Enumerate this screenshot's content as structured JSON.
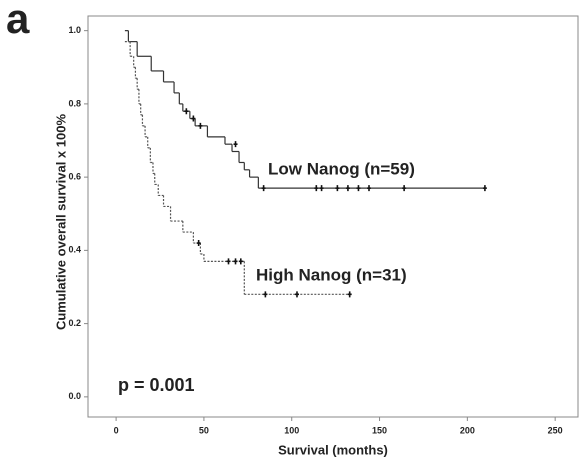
{
  "chart_data": {
    "type": "survival",
    "panel_label": "a",
    "x_label": "Survival (months)",
    "y_label": "Cumulative overall survival x 100%",
    "annotation": "p = 0.001",
    "xlim": [
      -16,
      263
    ],
    "xticks": [
      0,
      50,
      100,
      150,
      200,
      250
    ],
    "ylim": [
      -0.055,
      1.04
    ],
    "yticks": [
      {
        "value": 0,
        "label": "0.0"
      },
      {
        "value": 0.2,
        "label": "0.2"
      },
      {
        "value": 0.4,
        "label": "0.4"
      },
      {
        "value": 0.6,
        "label": "0.6"
      },
      {
        "value": 0.8,
        "label": "0.8"
      },
      {
        "value": 1,
        "label": "1.0"
      }
    ],
    "series": [
      {
        "name": "Low Nanog (n=59)",
        "color": "#333333",
        "dash": false,
        "x": [
          5,
          7,
          12,
          20,
          27,
          33,
          36,
          38,
          42,
          45,
          52,
          62,
          66,
          70,
          73,
          76,
          81
        ],
        "values": [
          1.0,
          0.97,
          0.93,
          0.89,
          0.86,
          0.83,
          0.8,
          0.78,
          0.76,
          0.74,
          0.71,
          0.69,
          0.67,
          0.64,
          0.62,
          0.6,
          0.57
        ],
        "censor_x": [
          40,
          44,
          48,
          68,
          84,
          114,
          117,
          126,
          132,
          138,
          144,
          164,
          210
        ],
        "censor_values": [
          0.78,
          0.76,
          0.74,
          0.69,
          0.57,
          0.57,
          0.57,
          0.57,
          0.57,
          0.57,
          0.57,
          0.57,
          0.57
        ]
      },
      {
        "name": "High Nanog (n=31)",
        "color": "#555555",
        "dash": true,
        "x": [
          5,
          8,
          10,
          11,
          12,
          13,
          14,
          15,
          16.5,
          18,
          19.5,
          21,
          22,
          24,
          27,
          31,
          38,
          44,
          48,
          50,
          73
        ],
        "values": [
          0.97,
          0.93,
          0.9,
          0.87,
          0.84,
          0.8,
          0.77,
          0.74,
          0.71,
          0.68,
          0.64,
          0.61,
          0.58,
          0.55,
          0.52,
          0.48,
          0.45,
          0.42,
          0.39,
          0.37,
          0.28
        ],
        "censor_x": [
          47,
          64,
          68,
          71,
          85,
          103,
          133
        ],
        "censor_values": [
          0.42,
          0.37,
          0.37,
          0.37,
          0.28,
          0.28,
          0.28
        ]
      }
    ]
  }
}
